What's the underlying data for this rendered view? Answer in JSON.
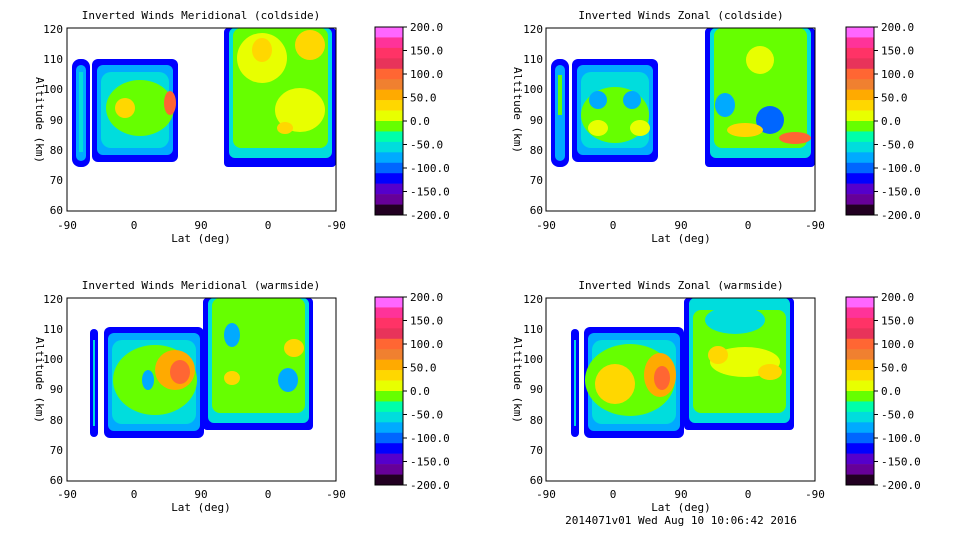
{
  "footer": "2014071v01 Wed Aug 10 10:06:42 2016",
  "colorbar": {
    "ticks": [
      "200.0",
      "150.0",
      "100.0",
      "50.0",
      "0.0",
      "-50.0",
      "-100.0",
      "-150.0",
      "-200.0"
    ],
    "colors": [
      "#ff66ff",
      "#ff3399",
      "#ff3366",
      "#e8335a",
      "#ff6633",
      "#f08030",
      "#ffaa00",
      "#ffd700",
      "#e8ff00",
      "#66ff00",
      "#00ffaa",
      "#00dddd",
      "#00aaff",
      "#0066ff",
      "#0000ff",
      "#5500cc",
      "#660099",
      "#220022"
    ]
  },
  "chart_data": [
    {
      "type": "heatmap",
      "title": "Inverted Winds Meridional (coldside)",
      "xlabel": "Lat (deg)",
      "ylabel": "Altitude (km)",
      "xticks": [
        "-90",
        "0",
        "90",
        "0",
        "-90"
      ],
      "yticks": [
        "120",
        "110",
        "100",
        "90",
        "80",
        "70",
        "60"
      ],
      "ylim": [
        60,
        120
      ],
      "zlim": [
        -200,
        200
      ],
      "grid": false
    },
    {
      "type": "heatmap",
      "title": "Inverted Winds Zonal (coldside)",
      "xlabel": "Lat (deg)",
      "ylabel": "Altitude (km)",
      "xticks": [
        "-90",
        "0",
        "90",
        "0",
        "-90"
      ],
      "yticks": [
        "120",
        "110",
        "100",
        "90",
        "80",
        "70",
        "60"
      ],
      "ylim": [
        60,
        120
      ],
      "zlim": [
        -200,
        200
      ],
      "grid": false
    },
    {
      "type": "heatmap",
      "title": "Inverted Winds Meridional (warmside)",
      "xlabel": "Lat (deg)",
      "ylabel": "Altitude (km)",
      "xticks": [
        "-90",
        "0",
        "90",
        "0",
        "-90"
      ],
      "yticks": [
        "120",
        "110",
        "100",
        "90",
        "80",
        "70",
        "60"
      ],
      "ylim": [
        60,
        120
      ],
      "zlim": [
        -200,
        200
      ],
      "grid": false
    },
    {
      "type": "heatmap",
      "title": "Inverted Winds Zonal (warmside)",
      "xlabel": "Lat (deg)",
      "ylabel": "Altitude (km)",
      "xticks": [
        "-90",
        "0",
        "90",
        "0",
        "-90"
      ],
      "yticks": [
        "120",
        "110",
        "100",
        "90",
        "80",
        "70",
        "60"
      ],
      "ylim": [
        60,
        120
      ],
      "zlim": [
        -200,
        200
      ],
      "grid": false
    }
  ]
}
